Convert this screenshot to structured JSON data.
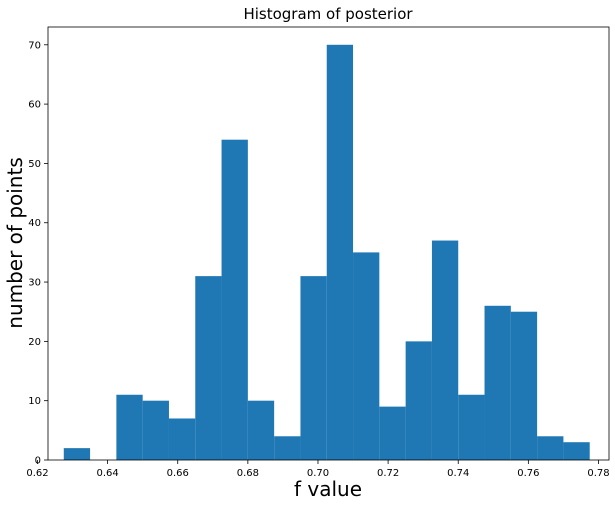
{
  "chart_data": {
    "type": "bar",
    "title": "Histogram of posterior",
    "xlabel": "f value",
    "ylabel": "number of points",
    "xlim": [
      0.623,
      0.783
    ],
    "ylim": [
      0,
      73
    ],
    "bar_color": "#1f77b4",
    "grid": false,
    "x_ticks": [
      "0.62",
      "0.64",
      "0.66",
      "0.68",
      "0.70",
      "0.72",
      "0.74",
      "0.76",
      "0.78"
    ],
    "y_ticks": [
      "0",
      "10",
      "20",
      "30",
      "40",
      "50",
      "60",
      "70"
    ],
    "bin_edges": [
      0.6275,
      0.635,
      0.6425,
      0.65,
      0.6575,
      0.665,
      0.6725,
      0.68,
      0.6875,
      0.695,
      0.7025,
      0.71,
      0.7175,
      0.725,
      0.7325,
      0.74,
      0.7475,
      0.755,
      0.7625,
      0.77,
      0.7775
    ],
    "values": [
      2,
      0,
      11,
      10,
      7,
      31,
      54,
      10,
      4,
      31,
      70,
      35,
      9,
      20,
      37,
      11,
      26,
      25,
      4,
      3
    ]
  }
}
